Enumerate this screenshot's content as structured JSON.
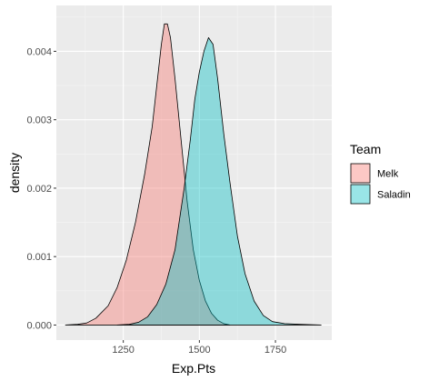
{
  "chart_data": {
    "type": "area",
    "xlabel": "Exp.Pts",
    "ylabel": "density",
    "xlim": [
      1030,
      1935
    ],
    "ylim": [
      -0.00022,
      0.00467
    ],
    "x_ticks": [
      1250,
      1500,
      1750
    ],
    "y_ticks": [
      0.0,
      0.001,
      0.002,
      0.003,
      0.004
    ],
    "x_tick_labels": [
      "1250",
      "1500",
      "1750"
    ],
    "y_tick_labels": [
      "0.000",
      "0.001",
      "0.002",
      "0.003",
      "0.004"
    ],
    "grid": true,
    "legend": {
      "title": "Team",
      "position": "right"
    },
    "series": [
      {
        "name": "Melk",
        "color": "#F8766D",
        "points": [
          [
            1060,
            0.0
          ],
          [
            1100,
            1e-05
          ],
          [
            1130,
            3e-05
          ],
          [
            1160,
            0.0001
          ],
          [
            1200,
            0.00028
          ],
          [
            1230,
            0.00055
          ],
          [
            1260,
            0.00095
          ],
          [
            1290,
            0.0015
          ],
          [
            1320,
            0.0022
          ],
          [
            1345,
            0.0029
          ],
          [
            1360,
            0.0035
          ],
          [
            1375,
            0.0041
          ],
          [
            1385,
            0.0044
          ],
          [
            1395,
            0.0044
          ],
          [
            1405,
            0.0042
          ],
          [
            1420,
            0.0036
          ],
          [
            1440,
            0.0027
          ],
          [
            1460,
            0.0018
          ],
          [
            1480,
            0.0011
          ],
          [
            1500,
            0.00065
          ],
          [
            1520,
            0.00035
          ],
          [
            1540,
            0.00017
          ],
          [
            1560,
            7e-05
          ],
          [
            1580,
            2e-05
          ],
          [
            1600,
            0.0
          ]
        ]
      },
      {
        "name": "Saladin",
        "color": "#00BFC4",
        "points": [
          [
            1230,
            0.0
          ],
          [
            1270,
            1e-05
          ],
          [
            1300,
            4e-05
          ],
          [
            1330,
            0.00012
          ],
          [
            1360,
            0.0003
          ],
          [
            1390,
            0.0006
          ],
          [
            1420,
            0.0011
          ],
          [
            1450,
            0.002
          ],
          [
            1470,
            0.0027
          ],
          [
            1485,
            0.0033
          ],
          [
            1500,
            0.0037
          ],
          [
            1515,
            0.004
          ],
          [
            1530,
            0.0042
          ],
          [
            1545,
            0.0041
          ],
          [
            1560,
            0.0036
          ],
          [
            1580,
            0.0028
          ],
          [
            1600,
            0.0021
          ],
          [
            1625,
            0.0013
          ],
          [
            1650,
            0.00075
          ],
          [
            1680,
            0.00035
          ],
          [
            1710,
            0.00014
          ],
          [
            1740,
            5e-05
          ],
          [
            1780,
            2e-05
          ],
          [
            1830,
            1e-05
          ],
          [
            1900,
            0.0
          ]
        ]
      }
    ]
  }
}
